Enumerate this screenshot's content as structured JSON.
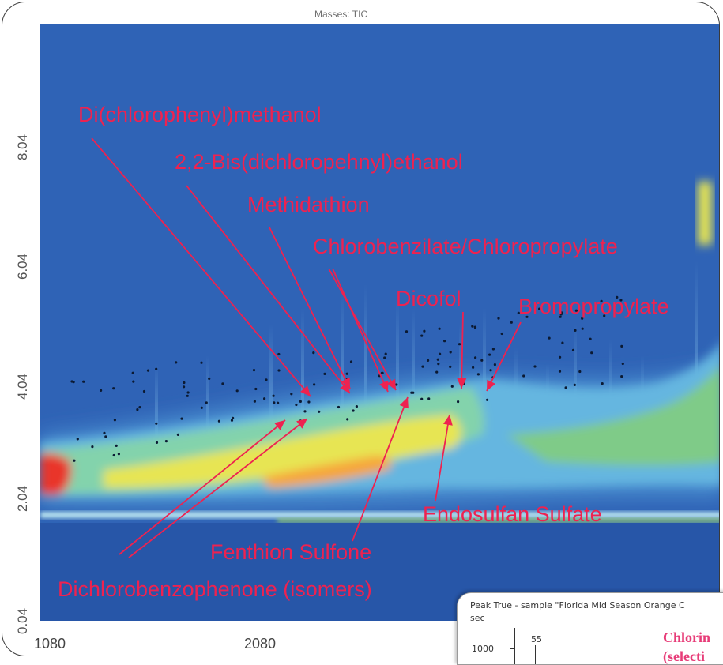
{
  "chart_data": {
    "type": "heatmap",
    "title": "Masses: TIC",
    "x_ticks": [
      "1080",
      "2080"
    ],
    "y_ticks": [
      "0.04",
      "2.04",
      "4.04",
      "6.04",
      "8.04"
    ],
    "annotations": [
      "Di(chlorophenyl)methanol",
      "2,2-Bis(dichloropehnyl)ethanol",
      "Methidathion",
      "Chlorobenzilate/Chloropropylate",
      "Dicofol",
      "Bromopropylate",
      "Endosulfan Sulfate",
      "Fenthion Sulfone",
      "Dichlorobenzophenone (isomers)"
    ],
    "colors": {
      "background": "#2f63b6",
      "low": "#5fb0df",
      "mid": "#7ed0a8",
      "high": "#f1e447",
      "peak": "#e9362a",
      "annotation": "#ee2250"
    }
  },
  "inset": {
    "title": "Peak True - sample \"Florida Mid Season Orange C",
    "unit": "sec",
    "y_tick": "1000",
    "peak_label": "55",
    "heading_line1": "Chlorin",
    "heading_line2": "(selecti"
  }
}
